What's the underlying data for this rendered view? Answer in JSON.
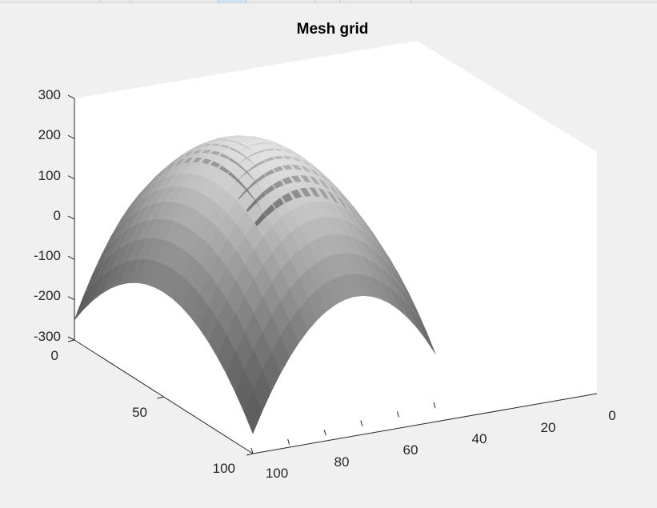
{
  "chart_data": {
    "type": "surface",
    "title": "Mesh grid",
    "xlabel": "",
    "ylabel": "",
    "zlabel": "",
    "x_range": [
      0,
      100
    ],
    "y_range": [
      0,
      100
    ],
    "z_range": [
      -300,
      300
    ],
    "x_ticks": [
      0,
      20,
      40,
      60,
      80,
      100
    ],
    "y_ticks": [
      0,
      50,
      100
    ],
    "z_ticks": [
      -300,
      -200,
      -100,
      0,
      100,
      200,
      300
    ],
    "x_tick_labels": [
      "0",
      "20",
      "40",
      "60",
      "80",
      "100"
    ],
    "y_tick_labels": [
      "0",
      "50",
      "100"
    ],
    "z_tick_labels": [
      "-300",
      "-200",
      "-100",
      "0",
      "100",
      "200",
      "300"
    ],
    "grid": false,
    "colormap": "gray",
    "surface_samples": [
      {
        "x": 0,
        "y": 0,
        "z": -130
      },
      {
        "x": 0,
        "y": 50,
        "z": 55
      },
      {
        "x": 0,
        "y": 100,
        "z": -165
      },
      {
        "x": 50,
        "y": 0,
        "z": 60
      },
      {
        "x": 50,
        "y": 50,
        "z": 250
      },
      {
        "x": 50,
        "y": 100,
        "z": 25
      },
      {
        "x": 100,
        "y": 0,
        "z": -250
      },
      {
        "x": 100,
        "y": 50,
        "z": -40
      },
      {
        "x": 100,
        "y": 100,
        "z": -250
      }
    ]
  },
  "colors": {
    "surface_dark": "#5a5a5a",
    "surface_light": "#e6e6e6",
    "axes_background": "#ffffff",
    "figure_background": "#f0f0f0"
  }
}
